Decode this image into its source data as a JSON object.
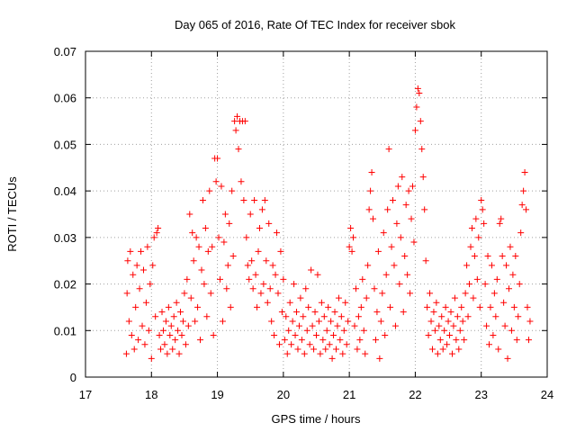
{
  "chart_data": {
    "type": "scatter",
    "title": "Day 065 of 2016, Rate Of TEC Index for receiver sbok",
    "xlabel": "GPS time / hours",
    "ylabel": "ROTI / TECUs",
    "xlim": [
      17,
      24
    ],
    "ylim": [
      0,
      0.07
    ],
    "x_ticks": [
      "17",
      "18",
      "19",
      "20",
      "21",
      "22",
      "23",
      "24"
    ],
    "y_ticks": [
      "0",
      "0.01",
      "0.02",
      "0.03",
      "0.04",
      "0.05",
      "0.06",
      "0.07"
    ],
    "grid": true,
    "marker": "+",
    "color": "#ff0000",
    "series": [
      {
        "name": "ROTI",
        "points": [
          [
            17.62,
            0.005
          ],
          [
            17.63,
            0.018
          ],
          [
            17.64,
            0.025
          ],
          [
            17.66,
            0.012
          ],
          [
            17.68,
            0.027
          ],
          [
            17.7,
            0.009
          ],
          [
            17.72,
            0.022
          ],
          [
            17.74,
            0.006
          ],
          [
            17.76,
            0.015
          ],
          [
            17.78,
            0.024
          ],
          [
            17.8,
            0.008
          ],
          [
            17.82,
            0.019
          ],
          [
            17.84,
            0.027
          ],
          [
            17.86,
            0.011
          ],
          [
            17.88,
            0.023
          ],
          [
            17.9,
            0.007
          ],
          [
            17.92,
            0.016
          ],
          [
            17.94,
            0.028
          ],
          [
            17.96,
            0.01
          ],
          [
            17.98,
            0.02
          ],
          [
            18.0,
            0.004
          ],
          [
            18.02,
            0.024
          ],
          [
            18.04,
            0.03
          ],
          [
            18.06,
            0.013
          ],
          [
            18.08,
            0.031
          ],
          [
            18.1,
            0.032
          ],
          [
            18.12,
            0.009
          ],
          [
            18.14,
            0.006
          ],
          [
            18.16,
            0.014
          ],
          [
            18.18,
            0.01
          ],
          [
            18.2,
            0.007
          ],
          [
            18.22,
            0.012
          ],
          [
            18.24,
            0.005
          ],
          [
            18.26,
            0.015
          ],
          [
            18.28,
            0.009
          ],
          [
            18.3,
            0.011
          ],
          [
            18.32,
            0.006
          ],
          [
            18.34,
            0.013
          ],
          [
            18.36,
            0.008
          ],
          [
            18.38,
            0.016
          ],
          [
            18.4,
            0.01
          ],
          [
            18.42,
            0.005
          ],
          [
            18.44,
            0.014
          ],
          [
            18.46,
            0.009
          ],
          [
            18.48,
            0.012
          ],
          [
            18.5,
            0.018
          ],
          [
            18.52,
            0.007
          ],
          [
            18.54,
            0.021
          ],
          [
            18.56,
            0.011
          ],
          [
            18.58,
            0.035
          ],
          [
            18.6,
            0.017
          ],
          [
            18.62,
            0.031
          ],
          [
            18.64,
            0.025
          ],
          [
            18.66,
            0.012
          ],
          [
            18.68,
            0.03
          ],
          [
            18.7,
            0.015
          ],
          [
            18.72,
            0.028
          ],
          [
            18.74,
            0.008
          ],
          [
            18.76,
            0.023
          ],
          [
            18.78,
            0.038
          ],
          [
            18.8,
            0.02
          ],
          [
            18.82,
            0.032
          ],
          [
            18.84,
            0.013
          ],
          [
            18.86,
            0.027
          ],
          [
            18.88,
            0.04
          ],
          [
            18.9,
            0.018
          ],
          [
            18.92,
            0.028
          ],
          [
            18.94,
            0.009
          ],
          [
            18.96,
            0.047
          ],
          [
            18.98,
            0.042
          ],
          [
            19.0,
            0.047
          ],
          [
            19.02,
            0.03
          ],
          [
            19.04,
            0.021
          ],
          [
            19.06,
            0.041
          ],
          [
            19.08,
            0.012
          ],
          [
            19.1,
            0.029
          ],
          [
            19.12,
            0.035
          ],
          [
            19.14,
            0.019
          ],
          [
            19.16,
            0.024
          ],
          [
            19.18,
            0.033
          ],
          [
            19.2,
            0.015
          ],
          [
            19.22,
            0.04
          ],
          [
            19.24,
            0.026
          ],
          [
            19.26,
            0.055
          ],
          [
            19.28,
            0.053
          ],
          [
            19.3,
            0.056
          ],
          [
            19.32,
            0.049
          ],
          [
            19.34,
            0.055
          ],
          [
            19.36,
            0.042
          ],
          [
            19.38,
            0.055
          ],
          [
            19.4,
            0.038
          ],
          [
            19.42,
            0.055
          ],
          [
            19.44,
            0.03
          ],
          [
            19.46,
            0.024
          ],
          [
            19.48,
            0.021
          ],
          [
            19.5,
            0.035
          ],
          [
            19.52,
            0.025
          ],
          [
            19.54,
            0.019
          ],
          [
            19.56,
            0.038
          ],
          [
            19.58,
            0.022
          ],
          [
            19.6,
            0.015
          ],
          [
            19.62,
            0.027
          ],
          [
            19.64,
            0.032
          ],
          [
            19.66,
            0.018
          ],
          [
            19.68,
            0.036
          ],
          [
            19.7,
            0.02
          ],
          [
            19.72,
            0.038
          ],
          [
            19.74,
            0.025
          ],
          [
            19.76,
            0.016
          ],
          [
            19.78,
            0.033
          ],
          [
            19.8,
            0.019
          ],
          [
            19.82,
            0.012
          ],
          [
            19.84,
            0.024
          ],
          [
            19.86,
            0.009
          ],
          [
            19.88,
            0.022
          ],
          [
            19.9,
            0.031
          ],
          [
            19.92,
            0.018
          ],
          [
            19.94,
            0.007
          ],
          [
            19.96,
            0.027
          ],
          [
            19.98,
            0.014
          ],
          [
            20.0,
            0.021
          ],
          [
            20.02,
            0.008
          ],
          [
            20.04,
            0.013
          ],
          [
            20.06,
            0.005
          ],
          [
            20.08,
            0.01
          ],
          [
            20.1,
            0.016
          ],
          [
            20.12,
            0.007
          ],
          [
            20.14,
            0.012
          ],
          [
            20.16,
            0.02
          ],
          [
            20.18,
            0.009
          ],
          [
            20.2,
            0.014
          ],
          [
            20.22,
            0.006
          ],
          [
            20.24,
            0.011
          ],
          [
            20.26,
            0.017
          ],
          [
            20.28,
            0.008
          ],
          [
            20.3,
            0.013
          ],
          [
            20.32,
            0.005
          ],
          [
            20.34,
            0.019
          ],
          [
            20.36,
            0.01
          ],
          [
            20.38,
            0.015
          ],
          [
            20.4,
            0.007
          ],
          [
            20.42,
            0.023
          ],
          [
            20.44,
            0.011
          ],
          [
            20.46,
            0.006
          ],
          [
            20.48,
            0.014
          ],
          [
            20.5,
            0.009
          ],
          [
            20.52,
            0.022
          ],
          [
            20.54,
            0.012
          ],
          [
            20.56,
            0.005
          ],
          [
            20.58,
            0.016
          ],
          [
            20.6,
            0.008
          ],
          [
            20.62,
            0.013
          ],
          [
            20.64,
            0.006
          ],
          [
            20.66,
            0.01
          ],
          [
            20.68,
            0.015
          ],
          [
            20.7,
            0.007
          ],
          [
            20.72,
            0.012
          ],
          [
            20.74,
            0.004
          ],
          [
            20.76,
            0.009
          ],
          [
            20.78,
            0.014
          ],
          [
            20.8,
            0.006
          ],
          [
            20.82,
            0.011
          ],
          [
            20.84,
            0.017
          ],
          [
            20.86,
            0.008
          ],
          [
            20.88,
            0.013
          ],
          [
            20.9,
            0.005
          ],
          [
            20.92,
            0.01
          ],
          [
            20.94,
            0.016
          ],
          [
            20.96,
            0.007
          ],
          [
            20.98,
            0.012
          ],
          [
            21.0,
            0.028
          ],
          [
            21.02,
            0.032
          ],
          [
            21.04,
            0.027
          ],
          [
            21.06,
            0.03
          ],
          [
            21.08,
            0.011
          ],
          [
            21.1,
            0.019
          ],
          [
            21.12,
            0.006
          ],
          [
            21.14,
            0.013
          ],
          [
            21.16,
            0.008
          ],
          [
            21.18,
            0.015
          ],
          [
            21.2,
            0.021
          ],
          [
            21.22,
            0.01
          ],
          [
            21.24,
            0.005
          ],
          [
            21.26,
            0.017
          ],
          [
            21.28,
            0.024
          ],
          [
            21.3,
            0.036
          ],
          [
            21.32,
            0.04
          ],
          [
            21.34,
            0.044
          ],
          [
            21.36,
            0.034
          ],
          [
            21.38,
            0.019
          ],
          [
            21.4,
            0.008
          ],
          [
            21.42,
            0.014
          ],
          [
            21.44,
            0.027
          ],
          [
            21.46,
            0.004
          ],
          [
            21.48,
            0.012
          ],
          [
            21.5,
            0.018
          ],
          [
            21.52,
            0.031
          ],
          [
            21.54,
            0.009
          ],
          [
            21.56,
            0.022
          ],
          [
            21.58,
            0.036
          ],
          [
            21.6,
            0.049
          ],
          [
            21.62,
            0.015
          ],
          [
            21.64,
            0.028
          ],
          [
            21.66,
            0.038
          ],
          [
            21.68,
            0.024
          ],
          [
            21.7,
            0.011
          ],
          [
            21.72,
            0.033
          ],
          [
            21.74,
            0.041
          ],
          [
            21.76,
            0.02
          ],
          [
            21.78,
            0.03
          ],
          [
            21.8,
            0.043
          ],
          [
            21.82,
            0.014
          ],
          [
            21.84,
            0.026
          ],
          [
            21.86,
            0.037
          ],
          [
            21.88,
            0.022
          ],
          [
            21.9,
            0.04
          ],
          [
            21.92,
            0.018
          ],
          [
            21.94,
            0.034
          ],
          [
            21.96,
            0.041
          ],
          [
            21.98,
            0.029
          ],
          [
            22.0,
            0.053
          ],
          [
            22.02,
            0.058
          ],
          [
            22.04,
            0.062
          ],
          [
            22.06,
            0.061
          ],
          [
            22.08,
            0.055
          ],
          [
            22.1,
            0.049
          ],
          [
            22.12,
            0.043
          ],
          [
            22.14,
            0.036
          ],
          [
            22.16,
            0.025
          ],
          [
            22.18,
            0.015
          ],
          [
            22.2,
            0.009
          ],
          [
            22.22,
            0.018
          ],
          [
            22.24,
            0.012
          ],
          [
            22.26,
            0.006
          ],
          [
            22.28,
            0.014
          ],
          [
            22.3,
            0.01
          ],
          [
            22.32,
            0.016
          ],
          [
            22.34,
            0.005
          ],
          [
            22.36,
            0.011
          ],
          [
            22.38,
            0.008
          ],
          [
            22.4,
            0.013
          ],
          [
            22.42,
            0.006
          ],
          [
            22.44,
            0.01
          ],
          [
            22.46,
            0.015
          ],
          [
            22.48,
            0.007
          ],
          [
            22.5,
            0.012
          ],
          [
            22.52,
            0.009
          ],
          [
            22.54,
            0.014
          ],
          [
            22.56,
            0.005
          ],
          [
            22.58,
            0.011
          ],
          [
            22.6,
            0.017
          ],
          [
            22.62,
            0.008
          ],
          [
            22.64,
            0.013
          ],
          [
            22.66,
            0.006
          ],
          [
            22.68,
            0.01
          ],
          [
            22.7,
            0.015
          ],
          [
            22.72,
            0.012
          ],
          [
            22.74,
            0.008
          ],
          [
            22.76,
            0.018
          ],
          [
            22.78,
            0.024
          ],
          [
            22.8,
            0.013
          ],
          [
            22.82,
            0.02
          ],
          [
            22.84,
            0.028
          ],
          [
            22.86,
            0.032
          ],
          [
            22.88,
            0.017
          ],
          [
            22.9,
            0.026
          ],
          [
            22.92,
            0.034
          ],
          [
            22.94,
            0.021
          ],
          [
            22.96,
            0.03
          ],
          [
            22.98,
            0.015
          ],
          [
            23.0,
            0.038
          ],
          [
            23.02,
            0.036
          ],
          [
            23.04,
            0.033
          ],
          [
            23.06,
            0.02
          ],
          [
            23.08,
            0.011
          ],
          [
            23.1,
            0.026
          ],
          [
            23.12,
            0.007
          ],
          [
            23.14,
            0.015
          ],
          [
            23.16,
            0.024
          ],
          [
            23.18,
            0.009
          ],
          [
            23.2,
            0.018
          ],
          [
            23.22,
            0.013
          ],
          [
            23.24,
            0.021
          ],
          [
            23.26,
            0.006
          ],
          [
            23.28,
            0.033
          ],
          [
            23.3,
            0.034
          ],
          [
            23.32,
            0.026
          ],
          [
            23.34,
            0.016
          ],
          [
            23.36,
            0.011
          ],
          [
            23.38,
            0.024
          ],
          [
            23.4,
            0.004
          ],
          [
            23.42,
            0.019
          ],
          [
            23.44,
            0.028
          ],
          [
            23.46,
            0.01
          ],
          [
            23.48,
            0.022
          ],
          [
            23.5,
            0.015
          ],
          [
            23.52,
            0.026
          ],
          [
            23.54,
            0.008
          ],
          [
            23.56,
            0.013
          ],
          [
            23.58,
            0.02
          ],
          [
            23.6,
            0.031
          ],
          [
            23.62,
            0.037
          ],
          [
            23.64,
            0.04
          ],
          [
            23.66,
            0.044
          ],
          [
            23.68,
            0.036
          ],
          [
            23.7,
            0.015
          ],
          [
            23.72,
            0.008
          ],
          [
            23.74,
            0.012
          ]
        ]
      }
    ]
  }
}
